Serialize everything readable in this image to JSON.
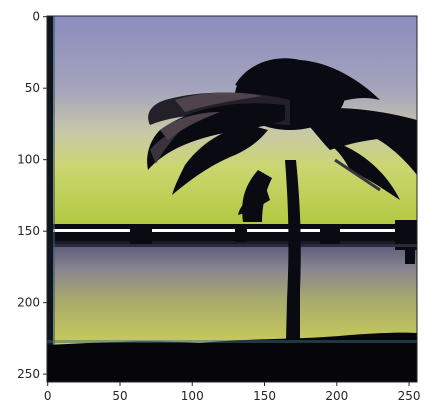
{
  "figure": {
    "type": "image-plot",
    "subject": "palm tree silhouette at sunset over water",
    "x_axis": {
      "range": [
        0,
        255
      ],
      "ticks": [
        0,
        50,
        100,
        150,
        200,
        250
      ],
      "tick_labels": [
        "0",
        "50",
        "100",
        "150",
        "200",
        "250"
      ]
    },
    "y_axis": {
      "range": [
        0,
        255
      ],
      "inverted": true,
      "ticks": [
        0,
        50,
        100,
        150,
        200,
        250
      ],
      "tick_labels": [
        "0",
        "50",
        "100",
        "150",
        "200",
        "250"
      ]
    },
    "colors": {
      "sky_top": "#8c8cc0",
      "sky_mid": "#a8a8b8",
      "horizon_glow": "#cfd86a",
      "sky_low": "#b4cc44",
      "water_top": "#6a6a88",
      "water_mid": "#9c9870",
      "water_low": "#c6c860",
      "silhouette": "#0a0a12",
      "axes": "#262626"
    }
  }
}
